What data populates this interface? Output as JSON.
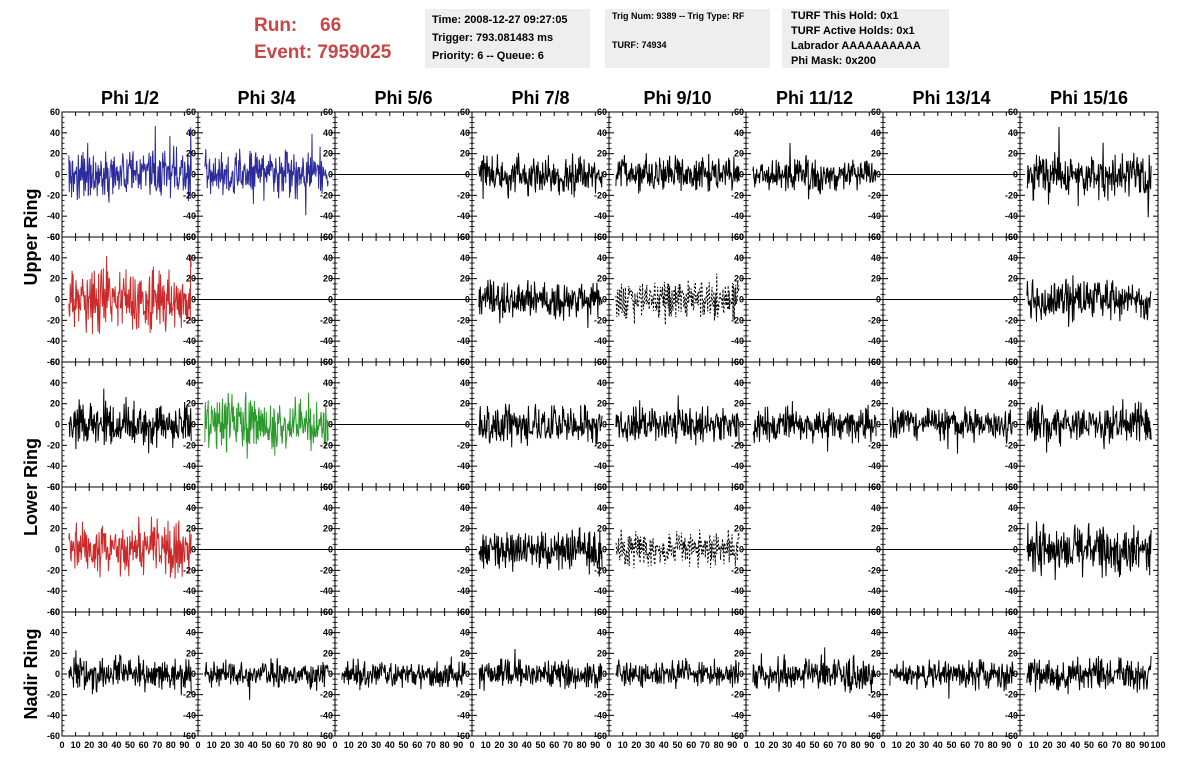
{
  "header": {
    "run_label": "Run:",
    "run_value": "66",
    "event_label": "Event:",
    "event_value": "7959025",
    "time": "Time: 2008-12-27 09:27:05",
    "trigger": "Trigger: 793.081483 ms",
    "priority": "Priority: 6 -- Queue: 6",
    "trig_num": "Trig Num: 9389 -- Trig Type: RF",
    "turf": "TURF: 74934",
    "turf_this_hold": "TURF This Hold: 0x1",
    "turf_active_holds": "TURF Active Holds: 0x1",
    "labrador": "Labrador AAAAAAAAAA",
    "phi_mask": "Phi Mask: 0x200"
  },
  "colors": {
    "blue": "#2b2b9a",
    "red": "#cc2a2a",
    "green": "#2a9a2a",
    "black": "#000000",
    "header_text": "#cc4444",
    "box_bg": "#eeeeee"
  },
  "chart_data": {
    "type": "line",
    "columns": [
      "Phi 1/2",
      "Phi 3/4",
      "Phi 5/6",
      "Phi 7/8",
      "Phi 9/10",
      "Phi 11/12",
      "Phi 13/14",
      "Phi 15/16"
    ],
    "row_labels": [
      "Upper Ring",
      "Lower Ring",
      "Nadir Ring"
    ],
    "row_groups": [
      {
        "label": "Upper Ring",
        "rows": [
          0,
          1
        ]
      },
      {
        "label": "Lower Ring",
        "rows": [
          2,
          3
        ]
      },
      {
        "label": "Nadir Ring",
        "rows": [
          4
        ]
      }
    ],
    "xlim": [
      0,
      100
    ],
    "ylim": [
      -60,
      60
    ],
    "y_ticks": [
      -60,
      -40,
      -20,
      0,
      20,
      40,
      60
    ],
    "x_ticks": [
      0,
      10,
      20,
      30,
      40,
      50,
      60,
      70,
      80,
      90,
      100
    ],
    "waveform_start_x": 5,
    "waveform_end_x": 95,
    "waveform_samples": 260,
    "panels": [
      [
        {
          "style": "solid",
          "color": "blue",
          "amp": 25
        },
        {
          "style": "solid",
          "color": "blue",
          "amp": 25
        },
        {
          "style": "flat",
          "color": "black",
          "amp": 0
        },
        {
          "style": "solid",
          "color": "black",
          "amp": 20
        },
        {
          "style": "solid",
          "color": "black",
          "amp": 18
        },
        {
          "style": "solid",
          "color": "black",
          "amp": 16
        },
        {
          "style": "flat",
          "color": "black",
          "amp": 0
        },
        {
          "style": "solid",
          "color": "black",
          "amp": 22
        }
      ],
      [
        {
          "style": "solid",
          "color": "red",
          "amp": 30
        },
        {
          "style": "flat",
          "color": "black",
          "amp": 0
        },
        {
          "style": "flat",
          "color": "black",
          "amp": 0
        },
        {
          "style": "solid",
          "color": "black",
          "amp": 20
        },
        {
          "style": "dashed",
          "color": "black",
          "amp": 22
        },
        {
          "style": "flat",
          "color": "black",
          "amp": 0
        },
        {
          "style": "flat",
          "color": "black",
          "amp": 0
        },
        {
          "style": "solid",
          "color": "black",
          "amp": 22
        }
      ],
      [
        {
          "style": "solid",
          "color": "black",
          "amp": 22
        },
        {
          "style": "solid",
          "color": "green",
          "amp": 28
        },
        {
          "style": "flat",
          "color": "black",
          "amp": 0
        },
        {
          "style": "solid",
          "color": "black",
          "amp": 20
        },
        {
          "style": "solid",
          "color": "black",
          "amp": 18
        },
        {
          "style": "solid",
          "color": "black",
          "amp": 16
        },
        {
          "style": "solid",
          "color": "black",
          "amp": 16
        },
        {
          "style": "solid",
          "color": "black",
          "amp": 20
        }
      ],
      [
        {
          "style": "solid",
          "color": "red",
          "amp": 25
        },
        {
          "style": "flat",
          "color": "black",
          "amp": 0
        },
        {
          "style": "flat",
          "color": "black",
          "amp": 0
        },
        {
          "style": "solid",
          "color": "black",
          "amp": 20
        },
        {
          "style": "dashed",
          "color": "black",
          "amp": 18
        },
        {
          "style": "flat",
          "color": "black",
          "amp": 0
        },
        {
          "style": "flat",
          "color": "black",
          "amp": 0
        },
        {
          "style": "solid",
          "color": "black",
          "amp": 25
        }
      ],
      [
        {
          "style": "solid",
          "color": "black",
          "amp": 18
        },
        {
          "style": "solid",
          "color": "black",
          "amp": 14
        },
        {
          "style": "solid",
          "color": "black",
          "amp": 14
        },
        {
          "style": "solid",
          "color": "black",
          "amp": 14
        },
        {
          "style": "solid",
          "color": "black",
          "amp": 14
        },
        {
          "style": "solid",
          "color": "black",
          "amp": 18
        },
        {
          "style": "solid",
          "color": "black",
          "amp": 14
        },
        {
          "style": "solid",
          "color": "black",
          "amp": 18
        }
      ]
    ]
  }
}
